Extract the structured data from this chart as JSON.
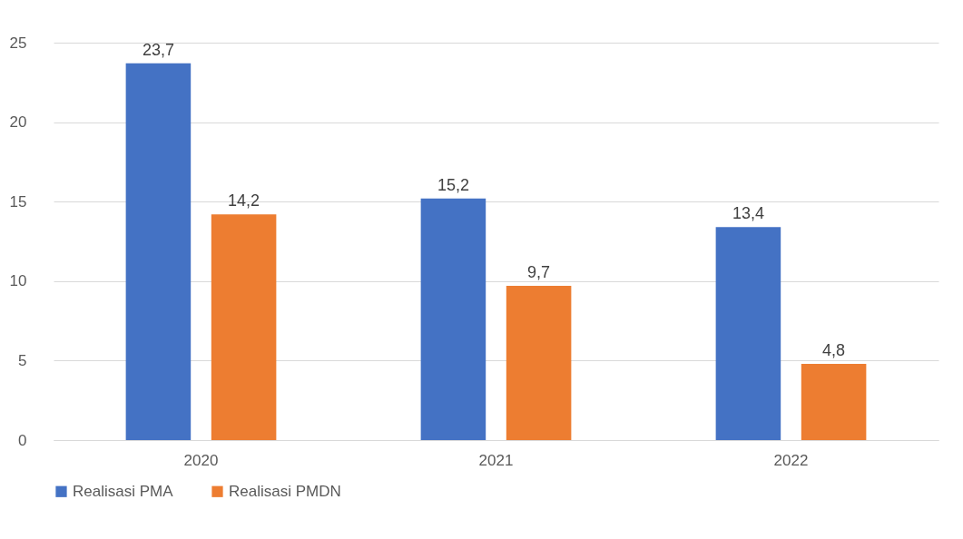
{
  "chart_data": {
    "type": "bar",
    "categories": [
      "2020",
      "2021",
      "2022"
    ],
    "series": [
      {
        "name": "Realisasi PMA",
        "color": "#4472c4",
        "values": [
          23.7,
          15.2,
          13.4
        ],
        "value_labels": [
          "23,7",
          "15,2",
          "13,4"
        ]
      },
      {
        "name": "Realisasi PMDN",
        "color": "#ed7d31",
        "values": [
          14.2,
          9.7,
          4.8
        ],
        "value_labels": [
          "14,2",
          "9,7",
          "4,8"
        ]
      }
    ],
    "ylim": [
      0,
      25
    ],
    "yticks": [
      0,
      5,
      10,
      15,
      20,
      25
    ],
    "grid": "y",
    "legend": "bottom"
  }
}
